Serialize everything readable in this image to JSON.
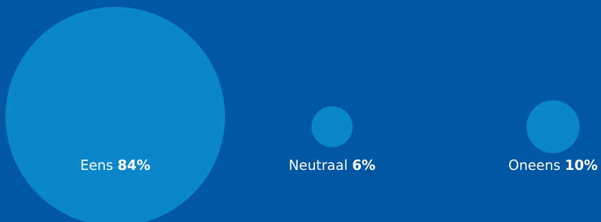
{
  "chart_data": {
    "type": "bubble",
    "title": "",
    "categories": [
      "Eens",
      "Neutraal",
      "Oneens"
    ],
    "values": [
      84,
      6,
      10
    ],
    "value_labels": [
      "84%",
      "6%",
      "10%"
    ],
    "unit": "%",
    "legend": "none",
    "grid": false
  },
  "colors": {
    "background": "#0157a2",
    "bubble": "#0a86cb",
    "text": "#ffffff"
  }
}
